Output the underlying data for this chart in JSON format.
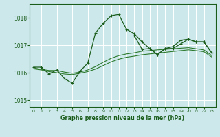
{
  "xlabel_bottom": "Graphe pression niveau de la mer (hPa)",
  "bg_color": "#cce8eb",
  "grid_color": "#ffffff",
  "line_color_dark": "#1a5c1a",
  "line_color_med": "#2d7a2d",
  "xlim": [
    -0.5,
    23.5
  ],
  "ylim": [
    1014.75,
    1018.5
  ],
  "yticks": [
    1015,
    1016,
    1017,
    1018
  ],
  "xticks": [
    0,
    1,
    2,
    3,
    4,
    5,
    6,
    7,
    8,
    9,
    10,
    11,
    12,
    13,
    14,
    15,
    16,
    17,
    18,
    19,
    20,
    21,
    22,
    23
  ],
  "series1_x": [
    0,
    1,
    2,
    3,
    4,
    5,
    6,
    7,
    8,
    9,
    10,
    11,
    12,
    13,
    14,
    15,
    16,
    17,
    18,
    19,
    20,
    21,
    22,
    23
  ],
  "series1_y": [
    1016.2,
    1016.2,
    1015.95,
    1016.1,
    1015.78,
    1015.62,
    1016.05,
    1016.35,
    1017.45,
    1017.8,
    1018.07,
    1018.12,
    1017.58,
    1017.42,
    1017.12,
    1016.88,
    1016.65,
    1016.88,
    1016.95,
    1017.18,
    1017.22,
    1017.12,
    1017.12,
    1016.72
  ],
  "series2_x": [
    0,
    1,
    2,
    3,
    4,
    5,
    6,
    7,
    8,
    9,
    10,
    11,
    12,
    13,
    14,
    15,
    16,
    17,
    18,
    19,
    20,
    21,
    22,
    23
  ],
  "series2_y": [
    1016.18,
    1016.12,
    1016.08,
    1016.08,
    1016.02,
    1015.98,
    1016.02,
    1016.1,
    1016.22,
    1016.38,
    1016.52,
    1016.62,
    1016.68,
    1016.72,
    1016.78,
    1016.8,
    1016.83,
    1016.85,
    1016.87,
    1016.89,
    1016.91,
    1016.87,
    1016.83,
    1016.62
  ],
  "series3_x": [
    0,
    1,
    2,
    3,
    4,
    5,
    6,
    7,
    8,
    9,
    10,
    11,
    12,
    13,
    14,
    15,
    16,
    17,
    18,
    19,
    20,
    21,
    22,
    23
  ],
  "series3_y": [
    1016.14,
    1016.1,
    1016.04,
    1016.0,
    1015.95,
    1015.93,
    1015.98,
    1016.04,
    1016.13,
    1016.26,
    1016.39,
    1016.49,
    1016.56,
    1016.6,
    1016.65,
    1016.68,
    1016.71,
    1016.74,
    1016.77,
    1016.8,
    1016.83,
    1016.8,
    1016.76,
    1016.57
  ],
  "series4_x": [
    13,
    14,
    15,
    16,
    17,
    18,
    19,
    20,
    21,
    22,
    23
  ],
  "series4_y": [
    1017.35,
    1016.85,
    1016.88,
    1016.65,
    1016.88,
    1016.88,
    1017.05,
    1017.22,
    1017.12,
    1017.12,
    1016.72
  ]
}
